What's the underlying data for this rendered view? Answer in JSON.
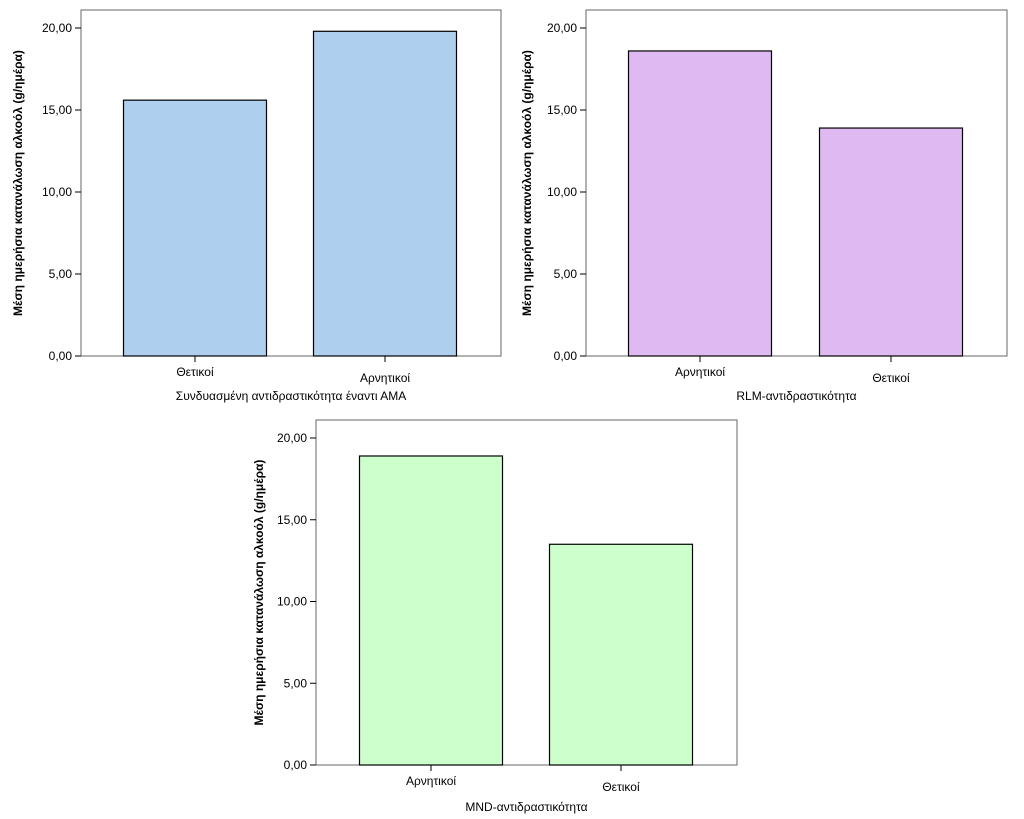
{
  "chart_data": [
    {
      "type": "bar",
      "xlabel": "Συνδυασμένη αντιδραστικότητα έναντι ΑΜΑ",
      "ylabel": "Μέση ημερήσια κατανάλωση αλκοόλ (g/ημέρα)",
      "categories": [
        "Θετικοί",
        "Αρνητικοί"
      ],
      "values": [
        15.6,
        19.8
      ],
      "ylim": [
        0,
        20
      ],
      "yticks": [
        "0,00",
        "5,00",
        "10,00",
        "15,00",
        "20,00"
      ],
      "bar_color": "#aecfee",
      "grid": false
    },
    {
      "type": "bar",
      "xlabel": "RLM-αντιδραστικότητα",
      "ylabel": "Μέση ημερήσια κατανάλωση αλκοόλ (g/ημέρα)",
      "categories": [
        "Αρνητικοί",
        "Θετικοί"
      ],
      "values": [
        18.6,
        13.9
      ],
      "ylim": [
        0,
        20
      ],
      "yticks": [
        "0,00",
        "5,00",
        "10,00",
        "15,00",
        "20,00"
      ],
      "bar_color": "#dfbaf2",
      "grid": false
    },
    {
      "type": "bar",
      "xlabel": "MND-αντιδραστικότητα",
      "ylabel": "Μέση ημερήσια κατανάλωση αλκοόλ (g/ημέρα)",
      "categories": [
        "Αρνητικοί",
        "Θετικοί"
      ],
      "values": [
        18.9,
        13.5
      ],
      "ylim": [
        0,
        20
      ],
      "yticks": [
        "0,00",
        "5,00",
        "10,00",
        "15,00",
        "20,00"
      ],
      "bar_color": "#ccffcc",
      "grid": false
    }
  ]
}
